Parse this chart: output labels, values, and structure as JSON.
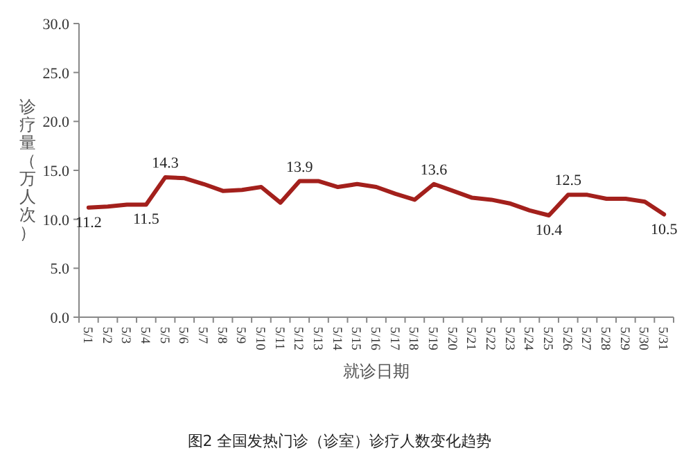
{
  "chart_data": {
    "type": "line",
    "xlabel": "就诊日期",
    "ylabel": "诊疗量（万人次）",
    "annotations": [
      "图2 全国发热门诊（诊室）诊疗人数变化趋势"
    ],
    "categories": [
      "5/1",
      "5/2",
      "5/3",
      "5/4",
      "5/5",
      "5/6",
      "5/7",
      "5/8",
      "5/9",
      "5/10",
      "5/11",
      "5/12",
      "5/13",
      "5/14",
      "5/15",
      "5/16",
      "5/17",
      "5/18",
      "5/19",
      "5/20",
      "5/21",
      "5/22",
      "5/23",
      "5/24",
      "5/25",
      "5/26",
      "5/27",
      "5/28",
      "5/29",
      "5/30",
      "5/31"
    ],
    "series": [
      {
        "color": "#a3201c",
        "values": [
          11.2,
          11.3,
          11.5,
          11.5,
          14.3,
          14.2,
          13.6,
          12.9,
          13.0,
          13.3,
          11.7,
          13.9,
          13.9,
          13.3,
          13.6,
          13.3,
          12.6,
          12.0,
          13.6,
          12.9,
          12.2,
          12.0,
          11.6,
          10.9,
          10.4,
          12.5,
          12.5,
          12.1,
          12.1,
          11.8,
          10.5
        ],
        "value_labels": [
          "11.2",
          null,
          null,
          "11.5",
          "14.3",
          null,
          null,
          null,
          null,
          null,
          null,
          "13.9",
          null,
          null,
          null,
          null,
          null,
          null,
          "13.6",
          null,
          null,
          null,
          null,
          null,
          "10.4",
          "12.5",
          null,
          null,
          null,
          null,
          "10.5"
        ]
      }
    ],
    "ylim": [
      0,
      30
    ],
    "yticks": [
      {
        "value": 0,
        "label": "0.0"
      },
      {
        "value": 5,
        "label": "5.0"
      },
      {
        "value": 10,
        "label": "10.0"
      },
      {
        "value": 15,
        "label": "15.0"
      },
      {
        "value": 20,
        "label": "20.0"
      },
      {
        "value": 25,
        "label": "25.0"
      },
      {
        "value": 30,
        "label": "30.0"
      }
    ],
    "grid": false,
    "marker": "none",
    "line_style": "solid"
  }
}
